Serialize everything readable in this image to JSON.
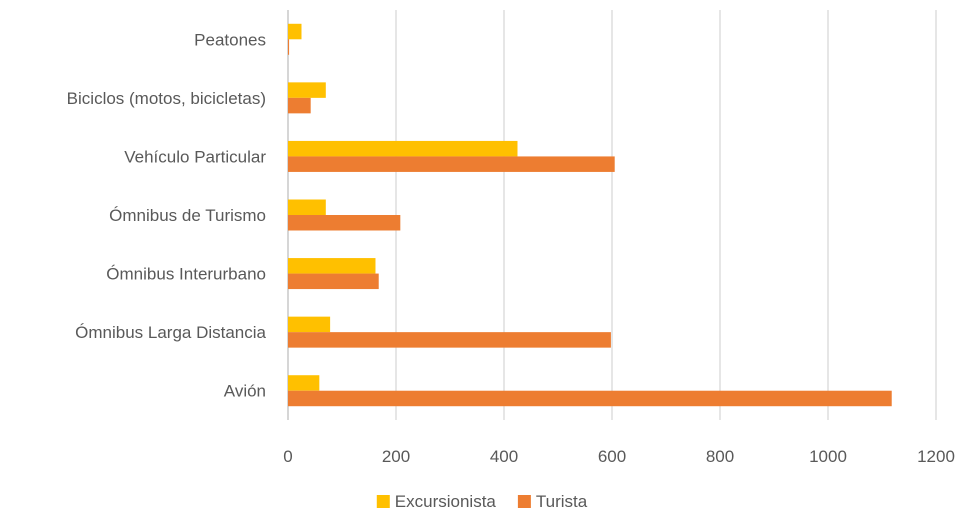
{
  "chart_data": {
    "type": "bar",
    "orientation": "horizontal",
    "categories": [
      "Peatones",
      "Biciclos (motos, bicicletas)",
      "Vehículo Particular",
      "Ómnibus de Turismo",
      "Ómnibus Interurbano",
      "Ómnibus Larga Distancia",
      "Avión"
    ],
    "series": [
      {
        "name": "Excursionista",
        "color": "#FFC000",
        "values": [
          25,
          70,
          425,
          70,
          162,
          78,
          58
        ]
      },
      {
        "name": "Turista",
        "color": "#ED7D31",
        "values": [
          2,
          42,
          605,
          208,
          168,
          598,
          1118
        ]
      }
    ],
    "xlim": [
      0,
      1200
    ],
    "x_ticks": [
      "0",
      "200",
      "400",
      "600",
      "800",
      "1000",
      "1200"
    ],
    "x_tick_values": [
      0,
      200,
      400,
      600,
      800,
      1000,
      1200
    ],
    "title": "",
    "xlabel": "",
    "ylabel": "",
    "grid": "vertical",
    "legend": "bottom"
  }
}
